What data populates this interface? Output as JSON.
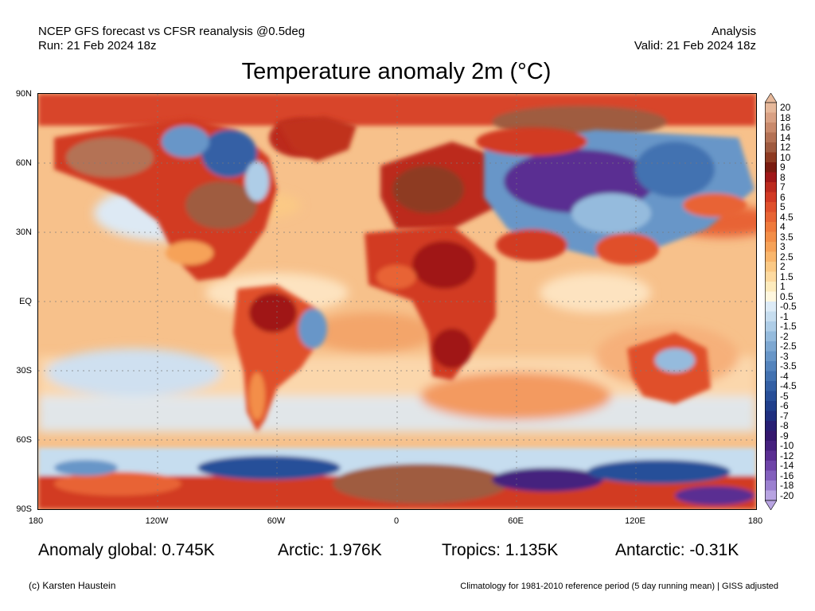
{
  "header": {
    "model_line": "NCEP GFS forecast vs CFSR reanalysis @0.5deg",
    "run_line": "Run: 21 Feb 2024 18z",
    "type_line": "Analysis",
    "valid_line": "Valid: 21 Feb 2024 18z"
  },
  "title": "Temperature anomaly 2m (°C)",
  "axes": {
    "lat_labels": [
      "90N",
      "60N",
      "30N",
      "EQ",
      "30S",
      "60S",
      "90S"
    ],
    "lon_labels": [
      "180",
      "120W",
      "60W",
      "0",
      "60E",
      "120E",
      "180"
    ]
  },
  "colorbar": {
    "labels": [
      "20",
      "18",
      "16",
      "14",
      "12",
      "10",
      "9",
      "8",
      "7",
      "6",
      "5",
      "4.5",
      "4",
      "3.5",
      "3",
      "2.5",
      "2",
      "1.5",
      "1",
      "0.5",
      "-0.5",
      "-1",
      "-1.5",
      "-2",
      "-2.5",
      "-3",
      "-3.5",
      "-4",
      "-4.5",
      "-5",
      "-6",
      "-7",
      "-8",
      "-9",
      "-10",
      "-12",
      "-14",
      "-16",
      "-18",
      "-20"
    ],
    "colors": [
      "#e6b89a",
      "#d9a184",
      "#c98a6c",
      "#b47255",
      "#9f5b40",
      "#8e3b22",
      "#7a1c10",
      "#a01818",
      "#bc2a1e",
      "#d23a24",
      "#e0502c",
      "#e86434",
      "#ef7a3c",
      "#f38e48",
      "#f6a258",
      "#f9b66c",
      "#fbc985",
      "#fddaa0",
      "#fdebbd",
      "#fef7df",
      "#ddebf6",
      "#c6ddef",
      "#aecde7",
      "#95bbdd",
      "#7ea8d2",
      "#6896c8",
      "#5484bd",
      "#4372b1",
      "#3460a5",
      "#284f99",
      "#203f8c",
      "#1f2f80",
      "#271f74",
      "#34176e",
      "#45207e",
      "#5a2e92",
      "#6e44a8",
      "#8360bd",
      "#9b80d0",
      "#b8a4e2"
    ]
  },
  "stats": {
    "global": "Anomaly global: 0.745K",
    "arctic": "Arctic: 1.976K",
    "tropics": "Tropics: 1.135K",
    "antarctic": "Antarctic: -0.31K"
  },
  "footer": {
    "credit": "(c) Karsten Haustein",
    "climatology": "Climatology for 1981-2010 reference period (5 day running mean) | GISS adjusted"
  }
}
